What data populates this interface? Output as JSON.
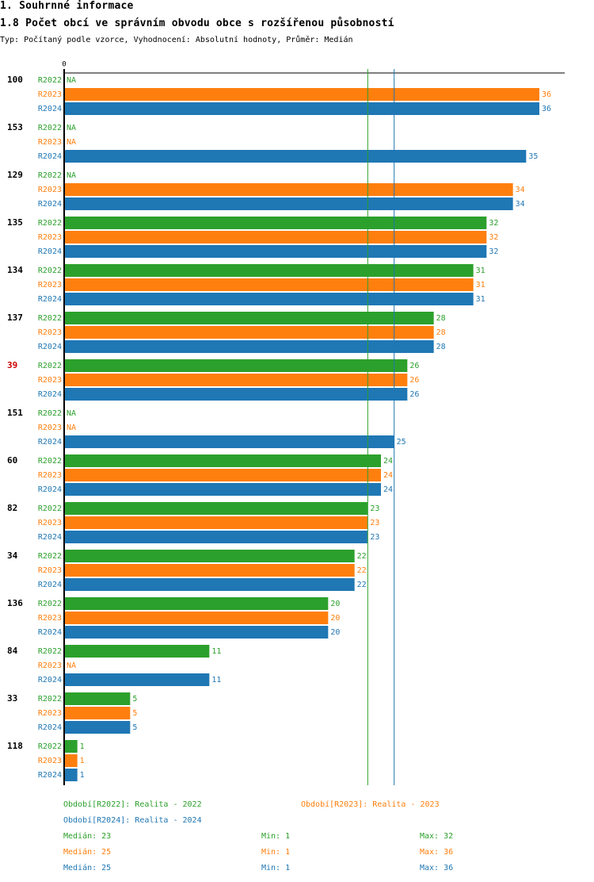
{
  "header": {
    "section_title": "1. Souhrnné informace",
    "chart_title": "1.8 Počet obcí ve správním obvodu obce s rozšířenou působností",
    "subtitle": "Typ: Počítaný podle vzorce, Vyhodnocení: Absolutní hodnoty, Průměr: Medián"
  },
  "colors": {
    "R2022": "#2ca02c",
    "R2023": "#ff7f0e",
    "R2024": "#1f77b4",
    "highlight": "#cc0000"
  },
  "chart_data": {
    "type": "bar",
    "orientation": "horizontal",
    "title": "1.8 Počet obcí ve správním obvodu obce s rozšířenou působností",
    "axis_zero_label": "0",
    "xlim": [
      0,
      36
    ],
    "series_names": [
      "R2022",
      "R2023",
      "R2024"
    ],
    "na_label": "NA",
    "highlighted_category": "39",
    "groups": [
      {
        "label": "100",
        "values": [
          null,
          36,
          36
        ]
      },
      {
        "label": "153",
        "values": [
          null,
          null,
          35
        ]
      },
      {
        "label": "129",
        "values": [
          null,
          34,
          34
        ]
      },
      {
        "label": "135",
        "values": [
          32,
          32,
          32
        ]
      },
      {
        "label": "134",
        "values": [
          31,
          31,
          31
        ]
      },
      {
        "label": "137",
        "values": [
          28,
          28,
          28
        ]
      },
      {
        "label": "39",
        "values": [
          26,
          26,
          26
        ]
      },
      {
        "label": "151",
        "values": [
          null,
          null,
          25
        ]
      },
      {
        "label": "60",
        "values": [
          24,
          24,
          24
        ]
      },
      {
        "label": "82",
        "values": [
          23,
          23,
          23
        ]
      },
      {
        "label": "34",
        "values": [
          22,
          22,
          22
        ]
      },
      {
        "label": "136",
        "values": [
          20,
          20,
          20
        ]
      },
      {
        "label": "84",
        "values": [
          11,
          null,
          11
        ]
      },
      {
        "label": "33",
        "values": [
          5,
          5,
          5
        ]
      },
      {
        "label": "118",
        "values": [
          1,
          1,
          1
        ]
      }
    ],
    "reference_lines": [
      {
        "series": "R2022",
        "value": 23
      },
      {
        "series": "R2024",
        "value": 25
      }
    ]
  },
  "legend": {
    "r2022": "Období[R2022]: Realita - 2022",
    "r2023": "Období[R2023]: Realita - 2023",
    "r2024": "Období[R2024]: Realita - 2024"
  },
  "stats": [
    {
      "median": "Medián: 23",
      "min": "Min: 1",
      "max": "Max: 32"
    },
    {
      "median": "Medián: 25",
      "min": "Min: 1",
      "max": "Max: 36"
    },
    {
      "median": "Medián: 25",
      "min": "Min: 1",
      "max": "Max: 36"
    }
  ]
}
